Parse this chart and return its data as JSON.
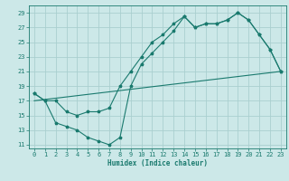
{
  "line1_x": [
    0,
    1,
    2,
    3,
    4,
    5,
    6,
    7,
    8,
    9,
    10,
    11,
    12,
    13,
    14,
    15,
    16,
    17,
    18,
    19,
    20,
    21,
    22,
    23
  ],
  "line1_y": [
    18,
    17,
    17,
    15.5,
    15,
    15.5,
    15.5,
    16,
    19,
    21,
    23,
    25,
    26,
    27.5,
    28.5,
    27,
    27.5,
    27.5,
    28,
    29,
    28,
    26,
    24,
    21
  ],
  "line2_x": [
    0,
    1,
    2,
    3,
    4,
    5,
    6,
    7,
    8,
    9,
    10,
    11,
    12,
    13,
    14,
    15,
    16,
    17,
    18,
    19,
    20,
    21,
    22,
    23
  ],
  "line2_y": [
    18,
    17,
    14,
    13.5,
    13,
    12,
    11.5,
    11,
    12,
    19,
    22,
    23.5,
    25,
    26.5,
    28.5,
    27,
    27.5,
    27.5,
    28,
    29,
    28,
    26,
    24,
    21
  ],
  "line3_x": [
    0,
    23
  ],
  "line3_y": [
    17,
    21
  ],
  "color": "#1a7a6e",
  "bg_color": "#cce8e8",
  "grid_color": "#aacfcf",
  "xlabel": "Humidex (Indice chaleur)",
  "xlim": [
    -0.5,
    23.5
  ],
  "ylim": [
    10.5,
    30
  ],
  "xticks": [
    0,
    1,
    2,
    3,
    4,
    5,
    6,
    7,
    8,
    9,
    10,
    11,
    12,
    13,
    14,
    15,
    16,
    17,
    18,
    19,
    20,
    21,
    22,
    23
  ],
  "yticks": [
    11,
    13,
    15,
    17,
    19,
    21,
    23,
    25,
    27,
    29
  ],
  "label_fontsize": 5.5,
  "tick_fontsize": 5.0
}
